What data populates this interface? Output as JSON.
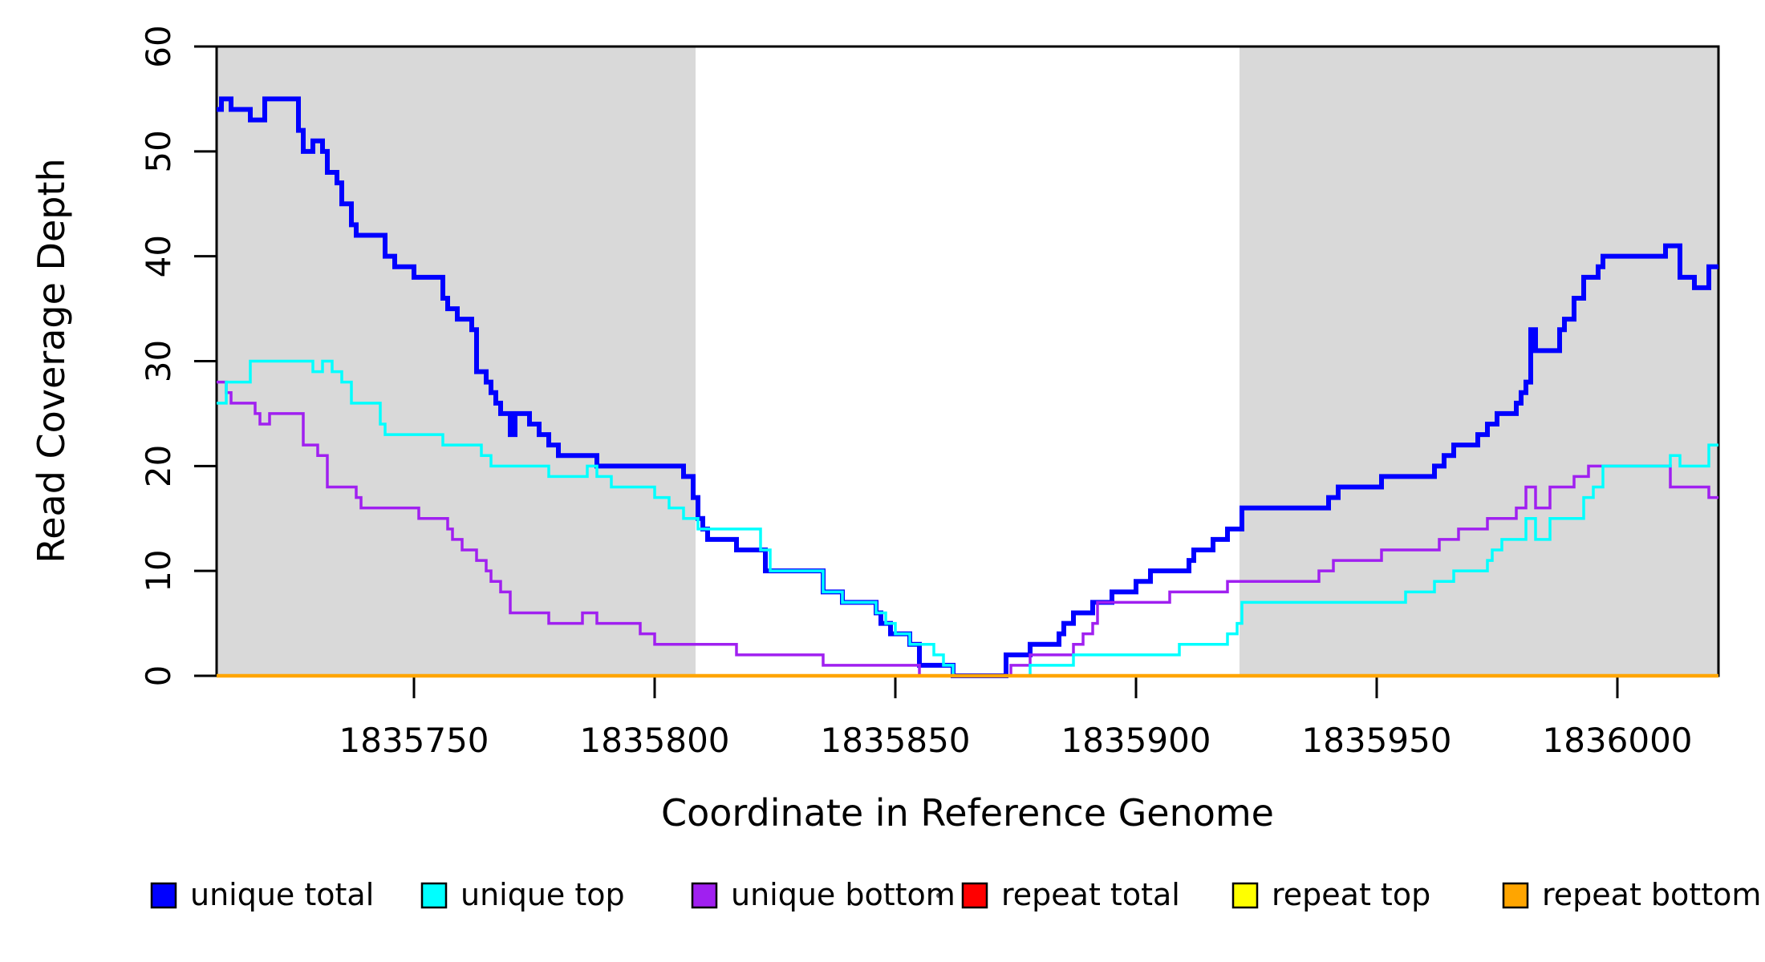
{
  "chart_data": {
    "type": "step",
    "title": "",
    "xlabel": "Coordinate in Reference Genome",
    "ylabel": "Read Coverage Depth",
    "xlim": [
      1835709,
      1836021
    ],
    "ylim": [
      0,
      60
    ],
    "x_ticks": [
      1835750,
      1835800,
      1835850,
      1835900,
      1835950,
      1836000
    ],
    "y_ticks": [
      0,
      10,
      20,
      30,
      40,
      50,
      60
    ],
    "grid": false,
    "legend_position": "bottom-horizontal",
    "colors": {
      "shaded_band": "#D9D9D9",
      "axis": "#000000",
      "background": "#FFFFFF"
    },
    "shaded_regions": [
      {
        "x1": 1835709,
        "x2": 1835808.5
      },
      {
        "x1": 1835921.5,
        "x2": 1836021
      }
    ],
    "series": [
      {
        "name": "unique total",
        "color": "#0000FF",
        "line_width": 6,
        "points": [
          [
            1835709,
            54
          ],
          [
            1835710,
            55
          ],
          [
            1835712,
            54
          ],
          [
            1835716,
            53
          ],
          [
            1835719,
            55
          ],
          [
            1835726,
            52
          ],
          [
            1835727,
            50
          ],
          [
            1835729,
            51
          ],
          [
            1835731,
            50
          ],
          [
            1835732,
            48
          ],
          [
            1835734,
            47
          ],
          [
            1835735,
            45
          ],
          [
            1835737,
            43
          ],
          [
            1835738,
            42
          ],
          [
            1835744,
            40
          ],
          [
            1835746,
            39
          ],
          [
            1835750,
            38
          ],
          [
            1835756,
            36
          ],
          [
            1835757,
            35
          ],
          [
            1835759,
            34
          ],
          [
            1835762,
            33
          ],
          [
            1835763,
            29
          ],
          [
            1835765,
            28
          ],
          [
            1835766,
            27
          ],
          [
            1835767,
            26
          ],
          [
            1835768,
            25
          ],
          [
            1835770,
            23
          ],
          [
            1835771,
            25
          ],
          [
            1835774,
            24
          ],
          [
            1835776,
            23
          ],
          [
            1835778,
            22
          ],
          [
            1835780,
            21
          ],
          [
            1835788,
            20
          ],
          [
            1835806,
            19
          ],
          [
            1835808,
            17
          ],
          [
            1835809,
            15
          ],
          [
            1835810,
            14
          ],
          [
            1835811,
            13
          ],
          [
            1835817,
            12
          ],
          [
            1835823,
            10
          ],
          [
            1835835,
            8
          ],
          [
            1835839,
            7
          ],
          [
            1835846,
            6
          ],
          [
            1835847,
            5
          ],
          [
            1835849,
            4
          ],
          [
            1835853,
            3
          ],
          [
            1835855,
            1
          ],
          [
            1835862,
            0
          ],
          [
            1835873,
            2
          ],
          [
            1835878,
            3
          ],
          [
            1835884,
            4
          ],
          [
            1835885,
            5
          ],
          [
            1835887,
            6
          ],
          [
            1835891,
            7
          ],
          [
            1835895,
            8
          ],
          [
            1835900,
            9
          ],
          [
            1835903,
            10
          ],
          [
            1835911,
            11
          ],
          [
            1835912,
            12
          ],
          [
            1835916,
            13
          ],
          [
            1835919,
            14
          ],
          [
            1835922,
            16
          ],
          [
            1835940,
            17
          ],
          [
            1835942,
            18
          ],
          [
            1835951,
            19
          ],
          [
            1835962,
            20
          ],
          [
            1835964,
            21
          ],
          [
            1835966,
            22
          ],
          [
            1835971,
            23
          ],
          [
            1835973,
            24
          ],
          [
            1835975,
            25
          ],
          [
            1835979,
            26
          ],
          [
            1835980,
            27
          ],
          [
            1835981,
            28
          ],
          [
            1835982,
            33
          ],
          [
            1835983,
            31
          ],
          [
            1835988,
            33
          ],
          [
            1835989,
            34
          ],
          [
            1835991,
            36
          ],
          [
            1835993,
            38
          ],
          [
            1835996,
            39
          ],
          [
            1835997,
            40
          ],
          [
            1836010,
            41
          ],
          [
            1836013,
            38
          ],
          [
            1836016,
            37
          ],
          [
            1836019,
            39
          ]
        ]
      },
      {
        "name": "unique top",
        "color": "#00FFFF",
        "line_width": 3.5,
        "points": [
          [
            1835709,
            26
          ],
          [
            1835711,
            28
          ],
          [
            1835716,
            30
          ],
          [
            1835729,
            29
          ],
          [
            1835731,
            30
          ],
          [
            1835733,
            29
          ],
          [
            1835735,
            28
          ],
          [
            1835737,
            26
          ],
          [
            1835743,
            24
          ],
          [
            1835744,
            23
          ],
          [
            1835756,
            22
          ],
          [
            1835764,
            21
          ],
          [
            1835766,
            20
          ],
          [
            1835778,
            19
          ],
          [
            1835786,
            20
          ],
          [
            1835788,
            19
          ],
          [
            1835791,
            18
          ],
          [
            1835800,
            17
          ],
          [
            1835803,
            16
          ],
          [
            1835806,
            15
          ],
          [
            1835809,
            14
          ],
          [
            1835822,
            12
          ],
          [
            1835824,
            10
          ],
          [
            1835835,
            8
          ],
          [
            1835839,
            7
          ],
          [
            1835846,
            6
          ],
          [
            1835848,
            5
          ],
          [
            1835850,
            4
          ],
          [
            1835853,
            3
          ],
          [
            1835858,
            2
          ],
          [
            1835860,
            1
          ],
          [
            1835862,
            0
          ],
          [
            1835878,
            1
          ],
          [
            1835887,
            2
          ],
          [
            1835909,
            3
          ],
          [
            1835919,
            4
          ],
          [
            1835921,
            5
          ],
          [
            1835922,
            7
          ],
          [
            1835956,
            8
          ],
          [
            1835962,
            9
          ],
          [
            1835966,
            10
          ],
          [
            1835973,
            11
          ],
          [
            1835974,
            12
          ],
          [
            1835976,
            13
          ],
          [
            1835981,
            15
          ],
          [
            1835983,
            13
          ],
          [
            1835986,
            15
          ],
          [
            1835993,
            17
          ],
          [
            1835995,
            18
          ],
          [
            1835997,
            20
          ],
          [
            1836011,
            21
          ],
          [
            1836013,
            20
          ],
          [
            1836019,
            22
          ]
        ]
      },
      {
        "name": "unique bottom",
        "color": "#A020F0",
        "line_width": 3.5,
        "points": [
          [
            1835709,
            28
          ],
          [
            1835711,
            27
          ],
          [
            1835712,
            26
          ],
          [
            1835717,
            25
          ],
          [
            1835718,
            24
          ],
          [
            1835720,
            25
          ],
          [
            1835727,
            22
          ],
          [
            1835730,
            21
          ],
          [
            1835732,
            18
          ],
          [
            1835738,
            17
          ],
          [
            1835739,
            16
          ],
          [
            1835751,
            15
          ],
          [
            1835757,
            14
          ],
          [
            1835758,
            13
          ],
          [
            1835760,
            12
          ],
          [
            1835763,
            11
          ],
          [
            1835765,
            10
          ],
          [
            1835766,
            9
          ],
          [
            1835768,
            8
          ],
          [
            1835770,
            6
          ],
          [
            1835778,
            5
          ],
          [
            1835785,
            6
          ],
          [
            1835788,
            5
          ],
          [
            1835797,
            4
          ],
          [
            1835800,
            3
          ],
          [
            1835817,
            2
          ],
          [
            1835835,
            1
          ],
          [
            1835855,
            0
          ],
          [
            1835874,
            1
          ],
          [
            1835878,
            2
          ],
          [
            1835887,
            3
          ],
          [
            1835889,
            4
          ],
          [
            1835891,
            5
          ],
          [
            1835892,
            7
          ],
          [
            1835907,
            8
          ],
          [
            1835919,
            9
          ],
          [
            1835938,
            10
          ],
          [
            1835941,
            11
          ],
          [
            1835951,
            12
          ],
          [
            1835963,
            13
          ],
          [
            1835967,
            14
          ],
          [
            1835973,
            15
          ],
          [
            1835979,
            16
          ],
          [
            1835981,
            18
          ],
          [
            1835983,
            16
          ],
          [
            1835986,
            18
          ],
          [
            1835991,
            19
          ],
          [
            1835994,
            20
          ],
          [
            1836011,
            18
          ],
          [
            1836019,
            17
          ]
        ]
      },
      {
        "name": "repeat total",
        "color": "#FF0000",
        "line_width": 3.5,
        "points": [
          [
            1835709,
            0
          ]
        ]
      },
      {
        "name": "repeat top",
        "color": "#FFFF00",
        "line_width": 3.5,
        "points": [
          [
            1835709,
            0
          ]
        ]
      },
      {
        "name": "repeat bottom",
        "color": "#FFA500",
        "line_width": 4.5,
        "points": [
          [
            1835709,
            0
          ]
        ]
      }
    ]
  }
}
